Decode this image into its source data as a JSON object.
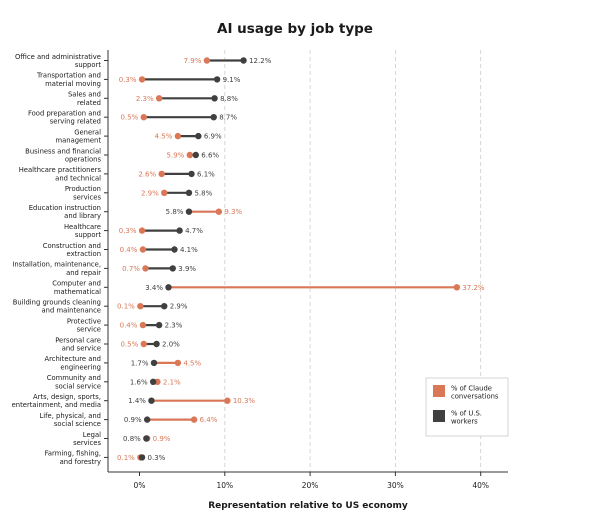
{
  "chart_data": {
    "type": "dumbbell",
    "title": "AI usage by job type",
    "xlabel": "Representation relative to US economy",
    "ylabel": "",
    "xlim": [
      -3,
      43
    ],
    "xticks": [
      0,
      10,
      20,
      30,
      40
    ],
    "xtick_labels": [
      "0%",
      "10%",
      "20%",
      "30%",
      "40%"
    ],
    "grid": "vertical dashed",
    "legend_position": "bottom-right",
    "colors": {
      "claude": "#d97757",
      "us": "#404040",
      "axis": "#333333",
      "grid": "#cccccc"
    },
    "series": [
      {
        "name": "% of Claude conversations",
        "key": "claude"
      },
      {
        "name": "% of U.S. workers",
        "key": "us"
      }
    ],
    "categories": [
      {
        "lines": [
          "Office and administrative",
          "support"
        ],
        "claude": 7.9,
        "us": 12.2,
        "claude_label": "7.9%",
        "us_label": "12.2%"
      },
      {
        "lines": [
          "Transportation and",
          "material moving"
        ],
        "claude": 0.3,
        "us": 9.1,
        "claude_label": "0.3%",
        "us_label": "9.1%"
      },
      {
        "lines": [
          "Sales and",
          "related"
        ],
        "claude": 2.3,
        "us": 8.8,
        "claude_label": "2.3%",
        "us_label": "8.8%"
      },
      {
        "lines": [
          "Food preparation and",
          "serving related"
        ],
        "claude": 0.5,
        "us": 8.7,
        "claude_label": "0.5%",
        "us_label": "8.7%"
      },
      {
        "lines": [
          "General",
          "management"
        ],
        "claude": 4.5,
        "us": 6.9,
        "claude_label": "4.5%",
        "us_label": "6.9%"
      },
      {
        "lines": [
          "Business and financial",
          "operations"
        ],
        "claude": 5.9,
        "us": 6.6,
        "claude_label": "5.9%",
        "us_label": "6.6%"
      },
      {
        "lines": [
          "Healthcare practitioners",
          "and technical"
        ],
        "claude": 2.6,
        "us": 6.1,
        "claude_label": "2.6%",
        "us_label": "6.1%"
      },
      {
        "lines": [
          "Production",
          "services"
        ],
        "claude": 2.9,
        "us": 5.8,
        "claude_label": "2.9%",
        "us_label": "5.8%"
      },
      {
        "lines": [
          "Education instruction",
          "and library"
        ],
        "claude": 9.3,
        "us": 5.8,
        "claude_label": "9.3%",
        "us_label": "5.8%"
      },
      {
        "lines": [
          "Healthcare",
          "support"
        ],
        "claude": 0.3,
        "us": 4.7,
        "claude_label": "0.3%",
        "us_label": "4.7%"
      },
      {
        "lines": [
          "Construction and",
          "extraction"
        ],
        "claude": 0.4,
        "us": 4.1,
        "claude_label": "0.4%",
        "us_label": "4.1%"
      },
      {
        "lines": [
          "Installation, maintenance,",
          "and repair"
        ],
        "claude": 0.7,
        "us": 3.9,
        "claude_label": "0.7%",
        "us_label": "3.9%"
      },
      {
        "lines": [
          "Computer and",
          "mathematical"
        ],
        "claude": 37.2,
        "us": 3.4,
        "claude_label": "37.2%",
        "us_label": "3.4%"
      },
      {
        "lines": [
          "Building grounds cleaning",
          "and maintenance"
        ],
        "claude": 0.1,
        "us": 2.9,
        "claude_label": "0.1%",
        "us_label": "2.9%"
      },
      {
        "lines": [
          "Protective",
          "service"
        ],
        "claude": 0.4,
        "us": 2.3,
        "claude_label": "0.4%",
        "us_label": "2.3%"
      },
      {
        "lines": [
          "Personal care",
          "and service"
        ],
        "claude": 0.5,
        "us": 2.0,
        "claude_label": "0.5%",
        "us_label": "2.0%"
      },
      {
        "lines": [
          "Architecture and",
          "engineering"
        ],
        "claude": 4.5,
        "us": 1.7,
        "claude_label": "4.5%",
        "us_label": "1.7%"
      },
      {
        "lines": [
          "Community and",
          "social service"
        ],
        "claude": 2.1,
        "us": 1.6,
        "claude_label": "2.1%",
        "us_label": "1.6%"
      },
      {
        "lines": [
          "Arts, design, sports,",
          "entertainment, and media"
        ],
        "claude": 10.3,
        "us": 1.4,
        "claude_label": "10.3%",
        "us_label": "1.4%"
      },
      {
        "lines": [
          "Life, physical, and",
          "social science"
        ],
        "claude": 6.4,
        "us": 0.9,
        "claude_label": "6.4%",
        "us_label": "0.9%"
      },
      {
        "lines": [
          "Legal",
          "services"
        ],
        "claude": 0.9,
        "us": 0.8,
        "claude_label": "0.9%",
        "us_label": "0.8%"
      },
      {
        "lines": [
          "Farming, fishing,",
          "and forestry"
        ],
        "claude": 0.1,
        "us": 0.3,
        "claude_label": "0.1%",
        "us_label": "0.3%"
      }
    ],
    "legend": [
      {
        "key": "claude",
        "lines": [
          "% of Claude",
          "conversations"
        ]
      },
      {
        "key": "us",
        "lines": [
          "% of U.S.",
          "workers"
        ]
      }
    ]
  }
}
